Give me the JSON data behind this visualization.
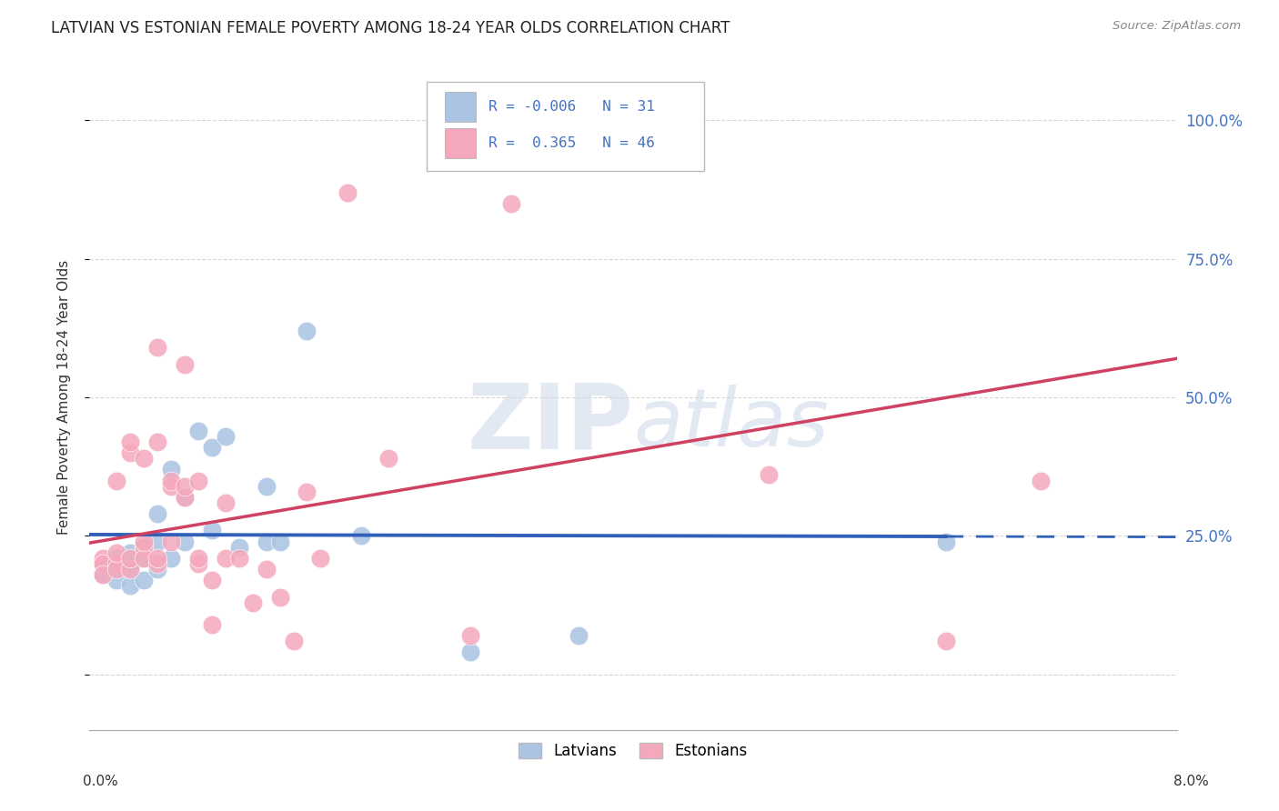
{
  "title": "LATVIAN VS ESTONIAN FEMALE POVERTY AMONG 18-24 YEAR OLDS CORRELATION CHART",
  "source": "Source: ZipAtlas.com",
  "ylabel": "Female Poverty Among 18-24 Year Olds",
  "xmin": 0.0,
  "xmax": 0.08,
  "ymin": -0.1,
  "ymax": 1.1,
  "yticks": [
    0.0,
    0.25,
    0.5,
    0.75,
    1.0
  ],
  "ytick_labels": [
    "",
    "25.0%",
    "50.0%",
    "75.0%",
    "100.0%"
  ],
  "watermark_top": "ZIP",
  "watermark_bot": "atlas",
  "latvian_color": "#aac4e2",
  "estonian_color": "#f5a8bc",
  "latvian_line_color": "#3060b8",
  "estonian_line_color": "#d04060",
  "latvian_R": -0.006,
  "latvian_N": 31,
  "estonian_R": 0.365,
  "estonian_N": 46,
  "legend_latvian_label": "Latvians",
  "legend_estonian_label": "Estonians",
  "right_axis_color": "#4472c4",
  "latvian_x": [
    0.001,
    0.001,
    0.002,
    0.002,
    0.003,
    0.003,
    0.003,
    0.003,
    0.004,
    0.004,
    0.004,
    0.005,
    0.005,
    0.005,
    0.006,
    0.006,
    0.007,
    0.007,
    0.008,
    0.009,
    0.009,
    0.01,
    0.011,
    0.013,
    0.013,
    0.014,
    0.016,
    0.02,
    0.028,
    0.036,
    0.063
  ],
  "latvian_y": [
    0.2,
    0.18,
    0.21,
    0.17,
    0.22,
    0.19,
    0.2,
    0.16,
    0.21,
    0.23,
    0.17,
    0.19,
    0.24,
    0.29,
    0.21,
    0.37,
    0.24,
    0.32,
    0.44,
    0.26,
    0.41,
    0.43,
    0.23,
    0.24,
    0.34,
    0.24,
    0.62,
    0.25,
    0.04,
    0.07,
    0.24
  ],
  "estonian_x": [
    0.001,
    0.001,
    0.001,
    0.002,
    0.002,
    0.002,
    0.002,
    0.003,
    0.003,
    0.003,
    0.003,
    0.004,
    0.004,
    0.004,
    0.004,
    0.005,
    0.005,
    0.005,
    0.005,
    0.006,
    0.006,
    0.006,
    0.007,
    0.007,
    0.007,
    0.008,
    0.008,
    0.008,
    0.009,
    0.009,
    0.01,
    0.01,
    0.011,
    0.012,
    0.013,
    0.014,
    0.015,
    0.016,
    0.017,
    0.019,
    0.022,
    0.028,
    0.031,
    0.05,
    0.063,
    0.07
  ],
  "estonian_y": [
    0.21,
    0.2,
    0.18,
    0.2,
    0.19,
    0.22,
    0.35,
    0.19,
    0.21,
    0.4,
    0.42,
    0.23,
    0.21,
    0.24,
    0.39,
    0.2,
    0.21,
    0.42,
    0.59,
    0.24,
    0.34,
    0.35,
    0.32,
    0.34,
    0.56,
    0.2,
    0.21,
    0.35,
    0.17,
    0.09,
    0.21,
    0.31,
    0.21,
    0.13,
    0.19,
    0.14,
    0.06,
    0.33,
    0.21,
    0.87,
    0.39,
    0.07,
    0.85,
    0.36,
    0.06,
    0.35
  ],
  "background_color": "#ffffff",
  "grid_color": "#cccccc"
}
